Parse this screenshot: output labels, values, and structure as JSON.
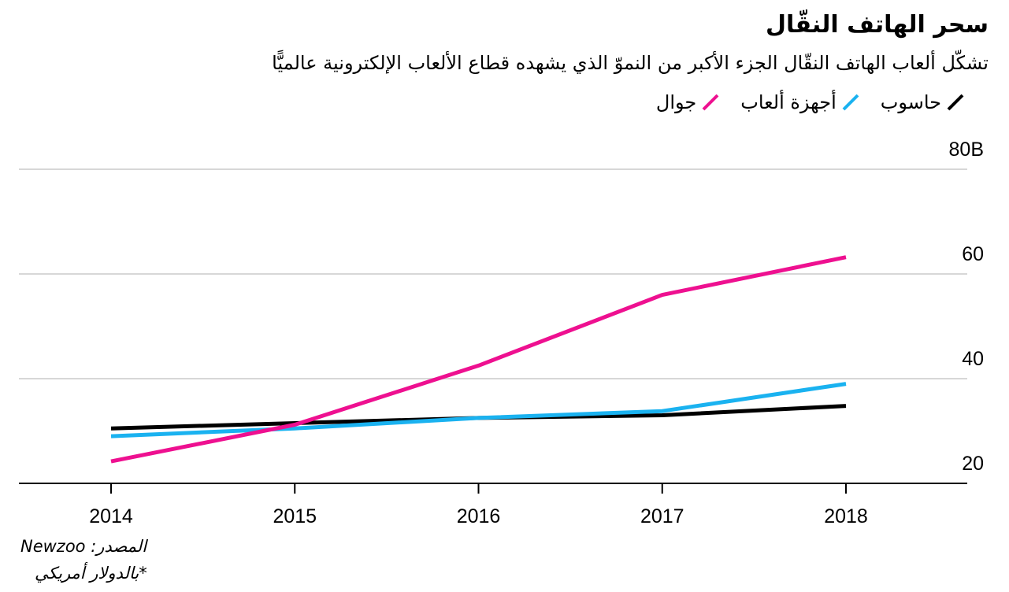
{
  "chart_data": {
    "type": "line",
    "title": "سحر الهاتف النقّال",
    "subtitle": "تشكّل ألعاب الهاتف النقّال الجزء الأكبر من النموّ الذي يشهده قطاع الألعاب الإلكترونية عالميًّا",
    "x": [
      2014,
      2015,
      2016,
      2017,
      2018
    ],
    "x_tick_labels": [
      "2014",
      "2015",
      "2016",
      "2017",
      "2018"
    ],
    "y_tick_labels": [
      "80B",
      "60",
      "40",
      "20"
    ],
    "y_ticks": [
      80,
      60,
      40,
      20
    ],
    "ylim": [
      20,
      80
    ],
    "xlabel": "",
    "ylabel": "",
    "grid": true,
    "legend_position": "top-right",
    "series": [
      {
        "name": "حاسوب",
        "color": "#000000",
        "values": [
          30.5,
          31.5,
          32.5,
          33,
          34.8
        ]
      },
      {
        "name": "أجهزة ألعاب",
        "color": "#1ab2f0",
        "values": [
          29,
          30.5,
          32.5,
          33.8,
          39
        ]
      },
      {
        "name": "جوال",
        "color": "#ee1090",
        "values": [
          24.2,
          31.2,
          42.5,
          56,
          63.2
        ]
      }
    ],
    "source": "المصدر: Newzoo",
    "footnote": "*بالدولار أمريكي"
  }
}
